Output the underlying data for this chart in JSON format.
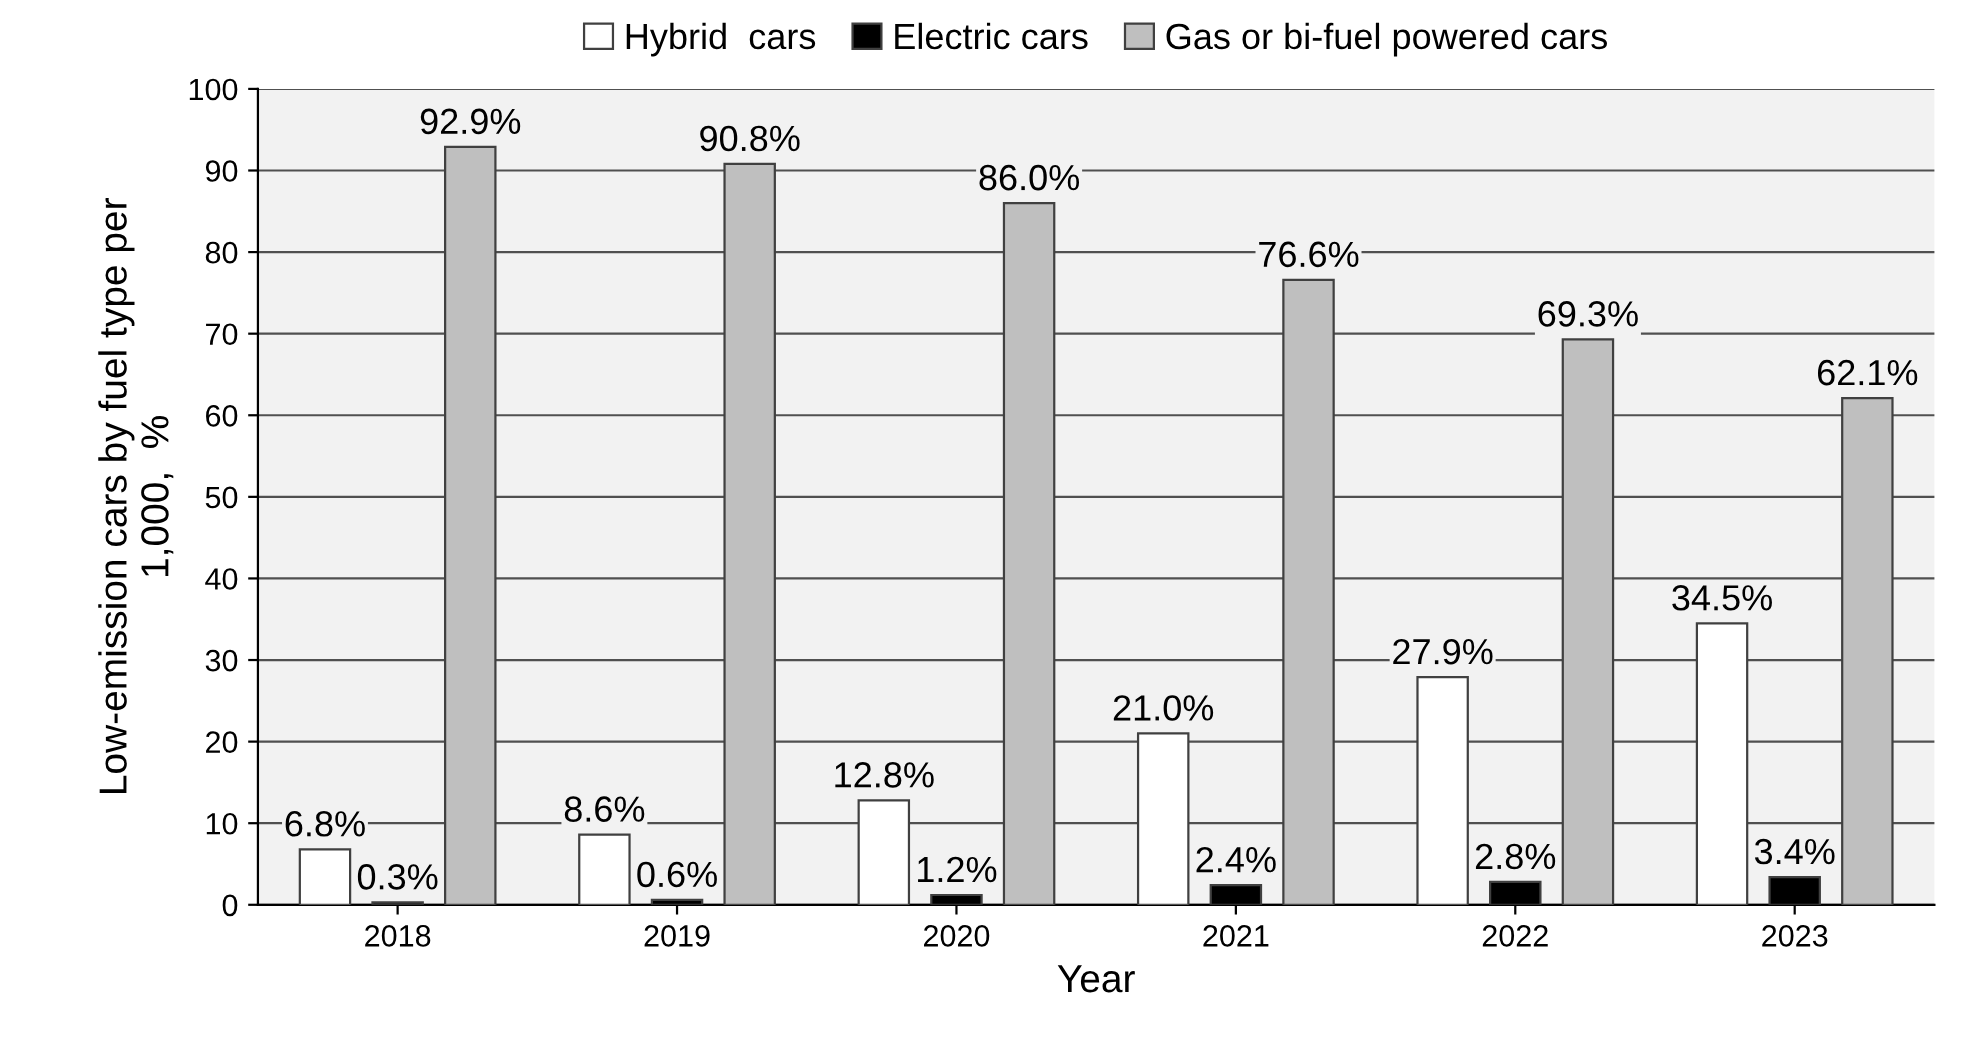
{
  "chart_data": {
    "type": "bar",
    "xlabel": "Year",
    "ylabel": "Low-emission cars by fuel type per\n1,000,  %",
    "categories": [
      "2018",
      "2019",
      "2020",
      "2021",
      "2022",
      "2023"
    ],
    "series": [
      {
        "name": "Hybrid  cars",
        "color": "#ffffff",
        "values": [
          6.8,
          8.6,
          12.8,
          21.0,
          27.9,
          34.5
        ],
        "value_labels": [
          "6.8%",
          "8.6%",
          "12.8%",
          "21.0%",
          "27.9%",
          "34.5%"
        ]
      },
      {
        "name": "Electric cars",
        "color": "#000000",
        "values": [
          0.3,
          0.6,
          1.2,
          2.4,
          2.8,
          3.4
        ],
        "value_labels": [
          "0.3%",
          "0.6%",
          "1.2%",
          "2.4%",
          "2.8%",
          "3.4%"
        ]
      },
      {
        "name": "Gas or bi-fuel powered cars",
        "color": "#bfbfbf",
        "values": [
          92.9,
          90.8,
          86.0,
          76.6,
          69.3,
          62.1
        ],
        "value_labels": [
          "92.9%",
          "90.8%",
          "86.0%",
          "76.6%",
          "69.3%",
          "62.1%"
        ]
      }
    ],
    "ylim": [
      0,
      100
    ],
    "yticks": [
      0,
      10,
      20,
      30,
      40,
      50,
      60,
      70,
      80,
      90,
      100
    ],
    "grid": "y",
    "legend": "top"
  }
}
